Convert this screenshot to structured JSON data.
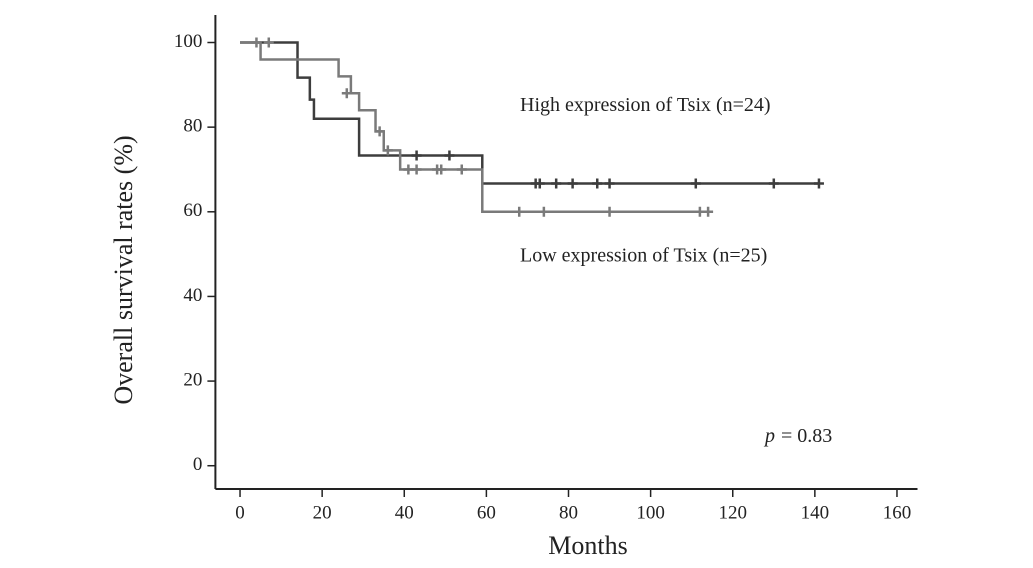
{
  "chart_data": {
    "type": "step",
    "x_label": "Months",
    "y_label": "Overall survival rates (%)",
    "xlim": [
      -6,
      165
    ],
    "ylim": [
      -5.5,
      106.5
    ],
    "xticks": [
      0,
      20,
      40,
      60,
      80,
      100,
      120,
      140,
      160
    ],
    "yticks": [
      0,
      20,
      40,
      60,
      80,
      100
    ],
    "series": [
      {
        "name": "High expression of Tsix (n=24)",
        "color": "#3d3d3d",
        "x": [
          0,
          14,
          17,
          18,
          29,
          59,
          141
        ],
        "values": [
          100,
          91.7,
          86.5,
          82,
          73.3,
          66.7,
          66.7
        ],
        "censor_x": [
          43,
          51,
          72,
          73,
          77,
          81,
          87,
          90,
          111,
          130,
          141
        ],
        "censor_values": [
          73.3,
          73.3,
          66.7,
          66.7,
          66.7,
          66.7,
          66.7,
          66.7,
          66.7,
          66.7,
          66.7
        ]
      },
      {
        "name": "Low expression of Tsix (n=25)",
        "color": "#7a7a7a",
        "x": [
          0,
          5,
          24,
          27,
          29,
          33,
          35,
          39,
          59,
          114
        ],
        "values": [
          100,
          96,
          92,
          88,
          84,
          79,
          74.5,
          70,
          60,
          60
        ],
        "censor_x": [
          4,
          7,
          26,
          34,
          36,
          41,
          43,
          48,
          49,
          54,
          68,
          74,
          90,
          112,
          114
        ],
        "censor_values": [
          100,
          100,
          88,
          79,
          74.5,
          70,
          70,
          70,
          70,
          70,
          60,
          60,
          60,
          60,
          60
        ]
      }
    ],
    "label_positions": [
      "upper",
      "lower"
    ],
    "annotation": {
      "symbol": "p",
      "text": "= 0.83"
    }
  }
}
